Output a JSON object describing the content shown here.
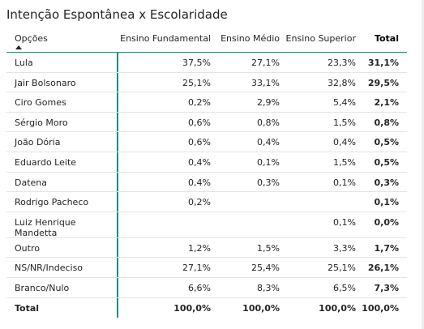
{
  "title": "Intenção Espontânea x Escolaridade",
  "headers": [
    "Opções",
    "Ensino Fundamental",
    "Ensino Médio",
    "Ensino Superior",
    "Total"
  ],
  "rows": [
    {
      "label": "Lula",
      "values": [
        "37,5%",
        "27,1%",
        "23,3%",
        "31,1%"
      ]
    },
    {
      "label": "Jair Bolsonaro",
      "values": [
        "25,1%",
        "33,1%",
        "32,8%",
        "29,5%"
      ]
    },
    {
      "label": "Ciro Gomes",
      "values": [
        "0,2%",
        "2,9%",
        "5,4%",
        "2,1%"
      ]
    },
    {
      "label": "Sérgio Moro",
      "values": [
        "0,6%",
        "0,8%",
        "1,5%",
        "0,8%"
      ]
    },
    {
      "label": "João Dória",
      "values": [
        "0,6%",
        "0,4%",
        "0,4%",
        "0,5%"
      ]
    },
    {
      "label": "Eduardo Leite",
      "values": [
        "0,4%",
        "0,1%",
        "1,5%",
        "0,5%"
      ]
    },
    {
      "label": "Datena",
      "values": [
        "0,4%",
        "0,3%",
        "0,1%",
        "0,3%"
      ]
    },
    {
      "label": "Rodrigo Pacheco",
      "values": [
        "0,2%",
        "",
        "",
        "0,1%"
      ]
    },
    {
      "label": "Luiz Henrique Mandetta",
      "values": [
        "",
        "",
        "0,1%",
        "0,0%"
      ]
    },
    {
      "label": "Outro",
      "values": [
        "1,2%",
        "1,5%",
        "3,3%",
        "1,7%"
      ]
    },
    {
      "label": "NS/NR/Indeciso",
      "values": [
        "27,1%",
        "25,4%",
        "25,1%",
        "26,1%"
      ]
    },
    {
      "label": "Branco/Nulo",
      "values": [
        "6,6%",
        "8,3%",
        "6,5%",
        "7,3%"
      ]
    },
    {
      "label": "Total",
      "values": [
        "100,0%",
        "100,0%",
        "100,0%",
        "100,0%"
      ]
    }
  ],
  "colors": {
    "accent": "#118d7e",
    "row_divider": "#e4e4e4"
  }
}
